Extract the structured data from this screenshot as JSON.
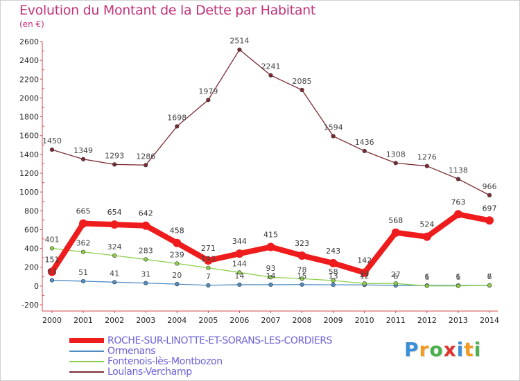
{
  "header": {
    "title": "Evolution du Montant de la Dette par Habitant",
    "subtitle": "(en €)"
  },
  "logo": {
    "text": "Proxiti",
    "letters": [
      {
        "ch": "P",
        "color": "#3a8fd6"
      },
      {
        "ch": "r",
        "color": "#f39a1f"
      },
      {
        "ch": "o",
        "color": "#49b04b"
      },
      {
        "ch": "x",
        "color": "#e2342e"
      },
      {
        "ch": "i",
        "color": "#3a8fd6"
      },
      {
        "ch": "t",
        "color": "#f39a1f"
      },
      {
        "ch": "i",
        "color": "#49b04b"
      }
    ]
  },
  "chart_data": {
    "type": "line",
    "title": "Evolution du Montant de la Dette par Habitant",
    "ylabel": "(en €)",
    "xlabel": "",
    "x": [
      "2000",
      "2001",
      "2002",
      "2003",
      "2004",
      "2005",
      "2006",
      "2007",
      "2008",
      "2009",
      "2010",
      "2011",
      "2012",
      "2013",
      "2014"
    ],
    "ylim": [
      -200,
      2600
    ],
    "yticks": [
      -200,
      0,
      200,
      400,
      600,
      800,
      1000,
      1200,
      1400,
      1600,
      1800,
      2000,
      2200,
      2400,
      2600
    ],
    "grid": false,
    "legend": "bottom-left",
    "series": [
      {
        "name": "ROCHE-SUR-LINOTTE-ET-SORANS-LES-CORDIERS",
        "color": "#ee1c1c",
        "label_color": "#6a62d9",
        "values": [
          151,
          665,
          654,
          642,
          458,
          271,
          344,
          415,
          323,
          243,
          142,
          568,
          524,
          763,
          697
        ]
      },
      {
        "name": "Ormenans",
        "color": "#4e8ec4",
        "label_color": "#6a62d9",
        "values": [
          61,
          51,
          41,
          31,
          20,
          7,
          14,
          14,
          15,
          13,
          12,
          6,
          6,
          6,
          6
        ]
      },
      {
        "name": "Fontenois-lès-Montbozon",
        "color": "#8ed04c",
        "label_color": "#6a62d9",
        "values": [
          401,
          362,
          324,
          283,
          239,
          193,
          144,
          93,
          78,
          58,
          27,
          27,
          1,
          1,
          7
        ]
      },
      {
        "name": "Loulans-Verchamp",
        "color": "#7a2a32",
        "label_color": "#6a62d9",
        "values": [
          1450,
          1349,
          1293,
          1286,
          1698,
          1979,
          2514,
          2241,
          2085,
          1594,
          1436,
          1308,
          1276,
          1138,
          966
        ]
      }
    ]
  }
}
